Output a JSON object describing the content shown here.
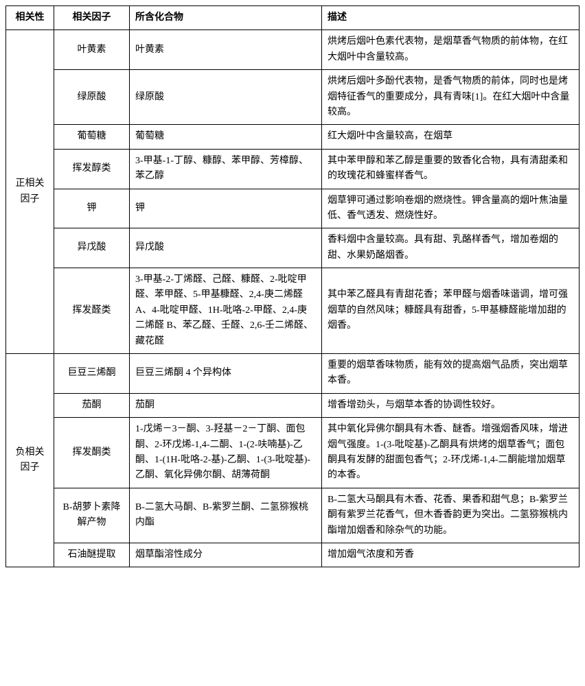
{
  "headers": {
    "correlation": "相关性",
    "factor": "相关因子",
    "compound": "所含化合物",
    "description": "描述"
  },
  "groups": [
    {
      "correlation": "正相关因子",
      "rows": [
        {
          "factor": "叶黄素",
          "compound": "叶黄素",
          "description": "烘烤后烟叶色素代表物，是烟草香气物质的前体物，在红大烟叶中含量较高。"
        },
        {
          "factor": "绿原酸",
          "compound": "绿原酸",
          "description": "烘烤后烟叶多酚代表物，是香气物质的前体，同时也是烤烟特征香气的重要成分，具有青味[1]。在红大烟叶中含量较高。"
        },
        {
          "factor": "葡萄糖",
          "compound": "葡萄糖",
          "description": "红大烟叶中含量较高，在烟草"
        },
        {
          "factor": "挥发醇类",
          "compound": "3-甲基-1-丁醇、糠醇、苯甲醇、芳樟醇、苯乙醇",
          "description": "其中苯甲醇和苯乙醇是重要的致香化合物，具有清甜柔和的玫瑰花和蜂蜜样香气。"
        },
        {
          "factor": "钾",
          "compound": "钾",
          "description": "烟草钾可通过影响卷烟的燃烧性。钾含量高的烟叶焦油量低、香气透发、燃烧性好。"
        },
        {
          "factor": "异戊酸",
          "compound": "异戊酸",
          "description": "香料烟中含量较高。具有甜、乳酪样香气，增加卷烟的甜、水果奶酪烟香。"
        },
        {
          "factor": "挥发醛类",
          "compound": "3-甲基-2-丁烯醛、己醛、糠醛、2-吡啶甲醛、苯甲醛、5-甲基糠醛、2,4-庚二烯醛 A、4-吡啶甲醛、1H-吡咯-2-甲醛、2,4-庚二烯醛 B、苯乙醛、壬醛、2,6-壬二烯醛、藏花醛",
          "description": "其中苯乙醛具有青甜花香；苯甲醛与烟香味谐调，增可强烟草的自然风味；糠醛具有甜香，5-甲基糠醛能增加甜的烟香。"
        }
      ]
    },
    {
      "correlation": "负相关因子",
      "rows": [
        {
          "factor": "巨豆三烯酮",
          "compound": "巨豆三烯酮 4 个异构体",
          "description": "重要的烟草香味物质，能有效的提高烟气品质，突出烟草本香。"
        },
        {
          "factor": "茄酮",
          "compound": "茄酮",
          "description": "增香增劲头，与烟草本香的协调性较好。"
        },
        {
          "factor": "挥发酮类",
          "compound": "1-戊烯－3－酮、3-羟基－2－丁酮、面包酮、2-环戊烯-1,4-二酮、1-(2-呋喃基)-乙酮、1-(1H-吡咯-2-基)-乙酮、1-(3-吡啶基)-乙酮、氧化异佛尔酮、胡薄荷酮",
          "description": "其中氧化异佛尔酮具有木香、醚香。增强烟香风味，增进烟气强度。1-(3-吡啶基)-乙酮具有烘烤的烟草香气；面包酮具有发酵的甜面包香气；2-环戊烯-1,4-二酮能增加烟草的本香。"
        },
        {
          "factor": "B-胡萝卜素降解产物",
          "compound": "B-二氢大马酮、B-紫罗兰酮、二氢猕猴桃内酯",
          "description": "B-二氢大马酮具有木香、花香、果香和甜气息；B-紫罗兰酮有紫罗兰花香气，但木香香韵更为突出。二氢猕猴桃内酯增加烟香和除杂气的功能。"
        },
        {
          "factor": "石油醚提取",
          "compound": "烟草酯溶性成分",
          "description": "增加烟气浓度和芳香"
        }
      ]
    }
  ]
}
